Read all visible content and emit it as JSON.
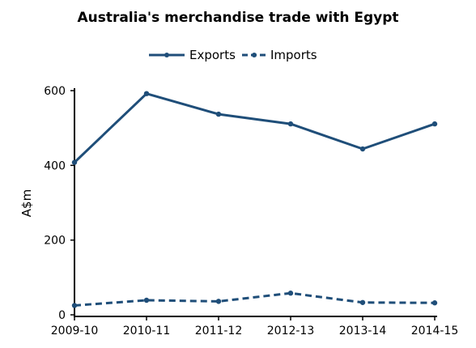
{
  "chart_data": {
    "type": "line",
    "title": "Australia's merchandise trade with Egypt",
    "xlabel": "",
    "ylabel": "A$m",
    "categories": [
      "2009-10",
      "2010-11",
      "2011-12",
      "2012-13",
      "2013-14",
      "2014-15"
    ],
    "series": [
      {
        "name": "Exports",
        "values": [
          408,
          592,
          537,
          511,
          444,
          511
        ],
        "style": "solid",
        "color": "#1f4e79"
      },
      {
        "name": "Imports",
        "values": [
          25,
          39,
          36,
          58,
          33,
          32
        ],
        "style": "dashed",
        "color": "#1f4e79"
      }
    ],
    "ylim": [
      0,
      600
    ],
    "yticks": [
      0,
      200,
      400,
      600
    ],
    "grid": false,
    "legend_position": "top-center"
  }
}
